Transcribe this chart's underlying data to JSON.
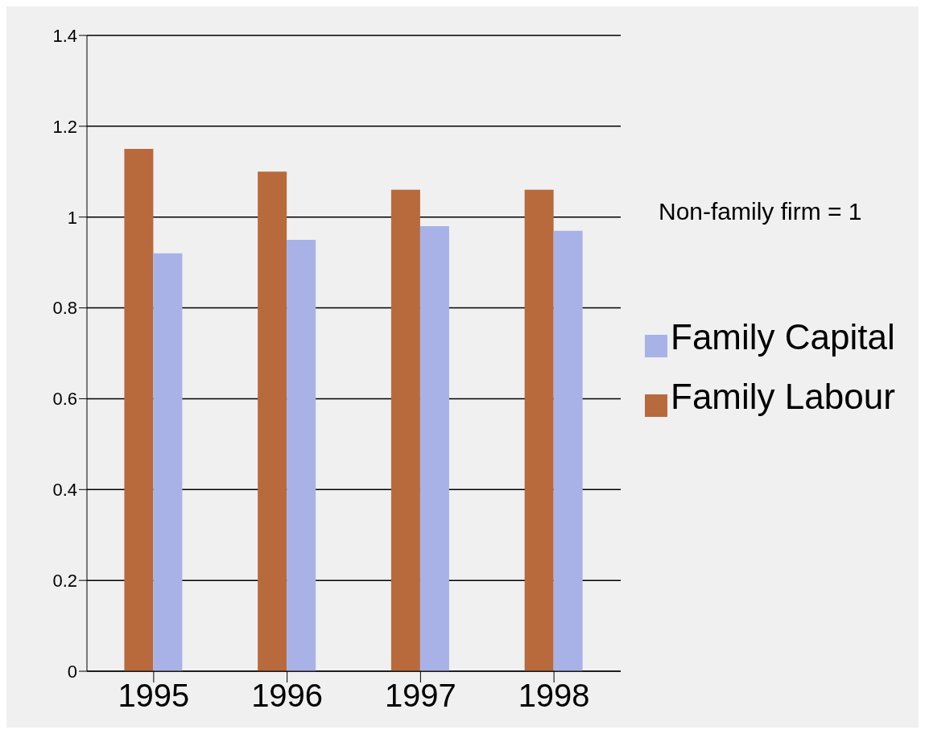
{
  "chart_data": {
    "type": "bar",
    "categories": [
      "1995",
      "1996",
      "1997",
      "1998"
    ],
    "series": [
      {
        "name": "Family Labour",
        "color": "#b86a3c",
        "values": [
          1.15,
          1.1,
          1.06,
          1.06
        ]
      },
      {
        "name": "Family Capital",
        "color": "#a9b2e6",
        "values": [
          0.92,
          0.95,
          0.98,
          0.97
        ]
      }
    ],
    "ylim": [
      0,
      1.4
    ],
    "yticks": [
      0,
      {
        "value": 0.2,
        "label": "0.2"
      },
      {
        "value": 0.4,
        "label": "0.4"
      },
      {
        "value": 0.6,
        "label": "0.6"
      },
      {
        "value": 0.8,
        "label": "0.8"
      },
      1,
      {
        "value": 1.2,
        "label": "1.2"
      },
      {
        "value": 1.4,
        "label": "1.4"
      }
    ],
    "grid": "y",
    "legend": "right",
    "annotations": [
      "Non-family firm = 1"
    ]
  }
}
